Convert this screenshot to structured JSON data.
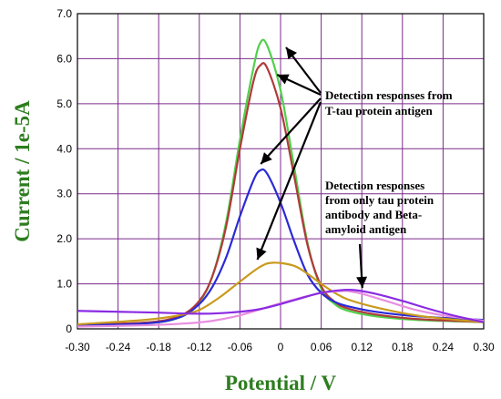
{
  "chart_data": {
    "type": "line",
    "xlabel": "Potential / V",
    "ylabel": "Current / 1e-5A",
    "xlim": [
      -0.3,
      0.3
    ],
    "ylim": [
      0,
      7.0
    ],
    "x_ticks": [
      "-0.30",
      "-0.24",
      "-0.18",
      "-0.12",
      "-0.06",
      "0",
      "0.06",
      "0.12",
      "0.18",
      "0.24",
      "0.30"
    ],
    "y_ticks": [
      "0",
      "1.0",
      "2.0",
      "3.0",
      "4.0",
      "5.0",
      "6.0",
      "7.0"
    ],
    "grid": true,
    "series": [
      {
        "color": "#4fd04a",
        "x": [
          -0.3,
          -0.2,
          -0.15,
          -0.12,
          -0.1,
          -0.08,
          -0.06,
          -0.04,
          -0.03,
          -0.02,
          0.0,
          0.02,
          0.04,
          0.06,
          0.08,
          0.1,
          0.14,
          0.2,
          0.3
        ],
        "y": [
          0.08,
          0.12,
          0.25,
          0.6,
          1.2,
          2.4,
          4.2,
          5.8,
          6.35,
          6.3,
          5.3,
          3.6,
          1.9,
          0.9,
          0.55,
          0.4,
          0.28,
          0.2,
          0.15
        ]
      },
      {
        "color": "#b03a3a",
        "x": [
          -0.3,
          -0.2,
          -0.15,
          -0.12,
          -0.1,
          -0.08,
          -0.06,
          -0.04,
          -0.03,
          -0.02,
          0.0,
          0.02,
          0.04,
          0.06,
          0.08,
          0.1,
          0.14,
          0.2,
          0.3
        ],
        "y": [
          0.1,
          0.14,
          0.28,
          0.62,
          1.2,
          2.3,
          4.0,
          5.5,
          5.85,
          5.8,
          4.9,
          3.4,
          1.85,
          0.95,
          0.6,
          0.45,
          0.32,
          0.22,
          0.15
        ]
      },
      {
        "color": "#2a2ad6",
        "x": [
          -0.3,
          -0.2,
          -0.15,
          -0.12,
          -0.1,
          -0.08,
          -0.06,
          -0.04,
          -0.03,
          -0.02,
          0.0,
          0.02,
          0.04,
          0.06,
          0.08,
          0.1,
          0.14,
          0.2,
          0.3
        ],
        "y": [
          0.08,
          0.12,
          0.25,
          0.55,
          0.95,
          1.6,
          2.5,
          3.3,
          3.52,
          3.45,
          2.8,
          1.95,
          1.2,
          0.8,
          0.6,
          0.5,
          0.38,
          0.28,
          0.2
        ]
      },
      {
        "color": "#c99a1c",
        "x": [
          -0.3,
          -0.2,
          -0.15,
          -0.12,
          -0.09,
          -0.06,
          -0.03,
          -0.01,
          0.02,
          0.04,
          0.06,
          0.08,
          0.1,
          0.14,
          0.2,
          0.26,
          0.3
        ],
        "y": [
          0.1,
          0.2,
          0.3,
          0.42,
          0.7,
          1.05,
          1.38,
          1.47,
          1.4,
          1.22,
          1.0,
          0.8,
          0.65,
          0.48,
          0.3,
          0.2,
          0.15
        ]
      },
      {
        "color": "#e88ee0",
        "x": [
          -0.3,
          -0.2,
          -0.14,
          -0.1,
          -0.06,
          -0.02,
          0.02,
          0.06,
          0.09,
          0.1,
          0.12,
          0.16,
          0.2,
          0.24,
          0.3
        ],
        "y": [
          0.05,
          0.08,
          0.12,
          0.18,
          0.3,
          0.48,
          0.65,
          0.8,
          0.84,
          0.84,
          0.78,
          0.6,
          0.42,
          0.3,
          0.18
        ]
      },
      {
        "color": "#8a2be2",
        "x": [
          -0.3,
          -0.24,
          -0.18,
          -0.14,
          -0.1,
          -0.06,
          -0.03,
          0.0,
          0.03,
          0.06,
          0.09,
          0.11,
          0.14,
          0.18,
          0.22,
          0.26,
          0.3
        ],
        "y": [
          0.4,
          0.38,
          0.36,
          0.34,
          0.34,
          0.38,
          0.44,
          0.55,
          0.68,
          0.8,
          0.86,
          0.86,
          0.78,
          0.62,
          0.44,
          0.28,
          0.15
        ]
      }
    ],
    "annotations": [
      {
        "lines": [
          "Detection responses from",
          "T-tau protein antigen"
        ]
      },
      {
        "lines": [
          "Detection responses",
          "from only tau protein",
          "antibody and Beta-",
          "amyloid antigen"
        ]
      }
    ]
  }
}
